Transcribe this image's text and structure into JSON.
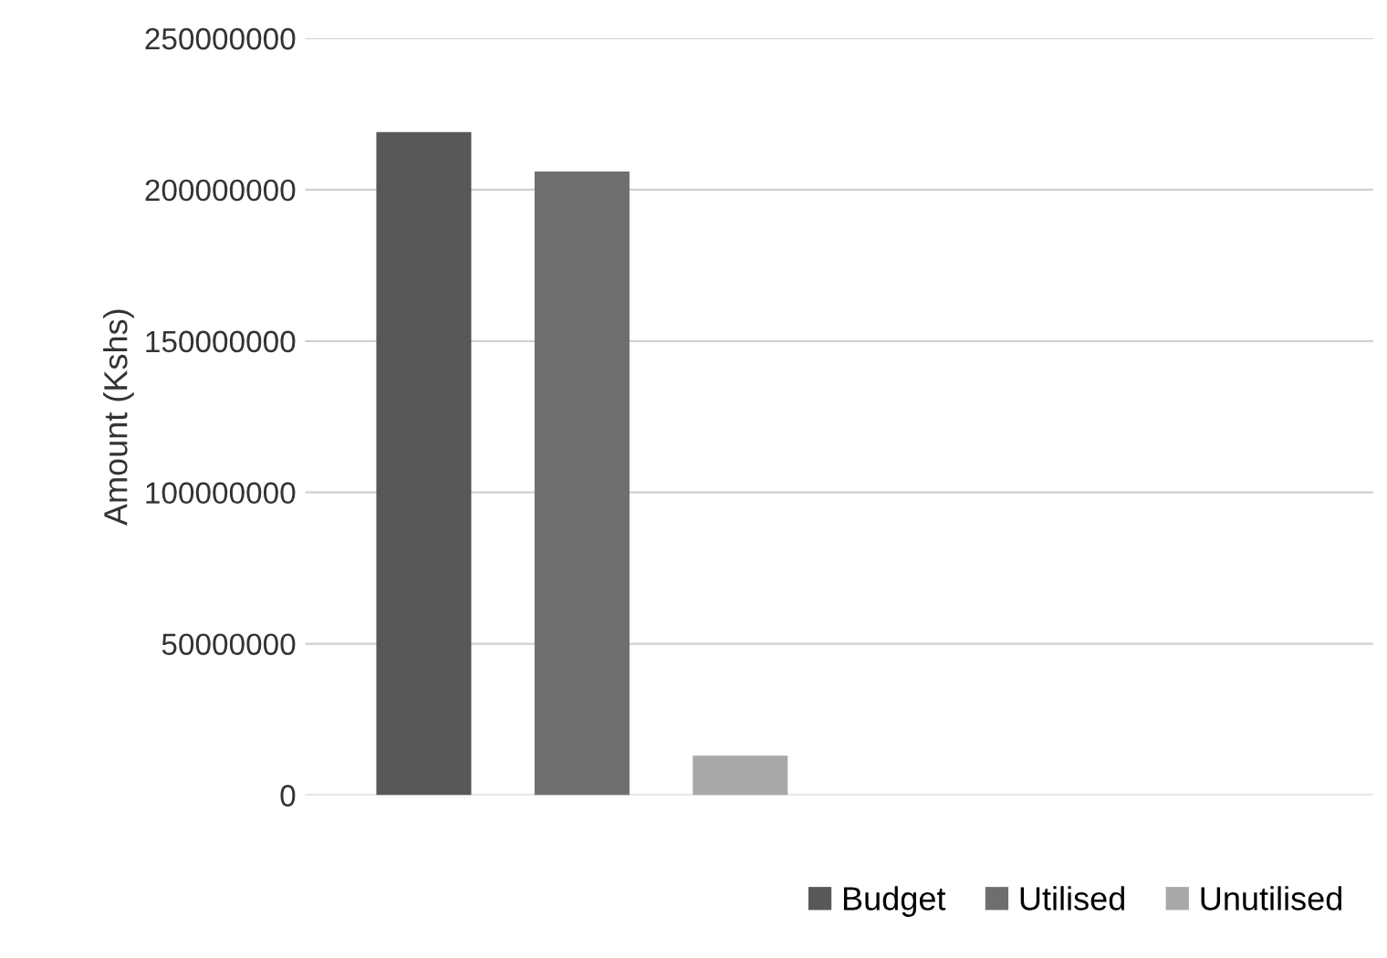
{
  "chart_data": {
    "type": "bar",
    "ylabel": "Amount (Kshs)",
    "categories": [
      null
    ],
    "series": [
      {
        "name": "Budget",
        "color": "#585858",
        "values": [
          219000000
        ]
      },
      {
        "name": "Utilised",
        "color": "#6e6e6e",
        "values": [
          206000000
        ]
      },
      {
        "name": "Unutilised",
        "color": "#a8a8a8",
        "values": [
          13000000
        ]
      }
    ],
    "ylim": [
      0,
      250000000
    ],
    "yticks": [
      0,
      50000000,
      100000000,
      150000000,
      200000000,
      250000000
    ],
    "grid": "y",
    "legend": "bottom right"
  }
}
